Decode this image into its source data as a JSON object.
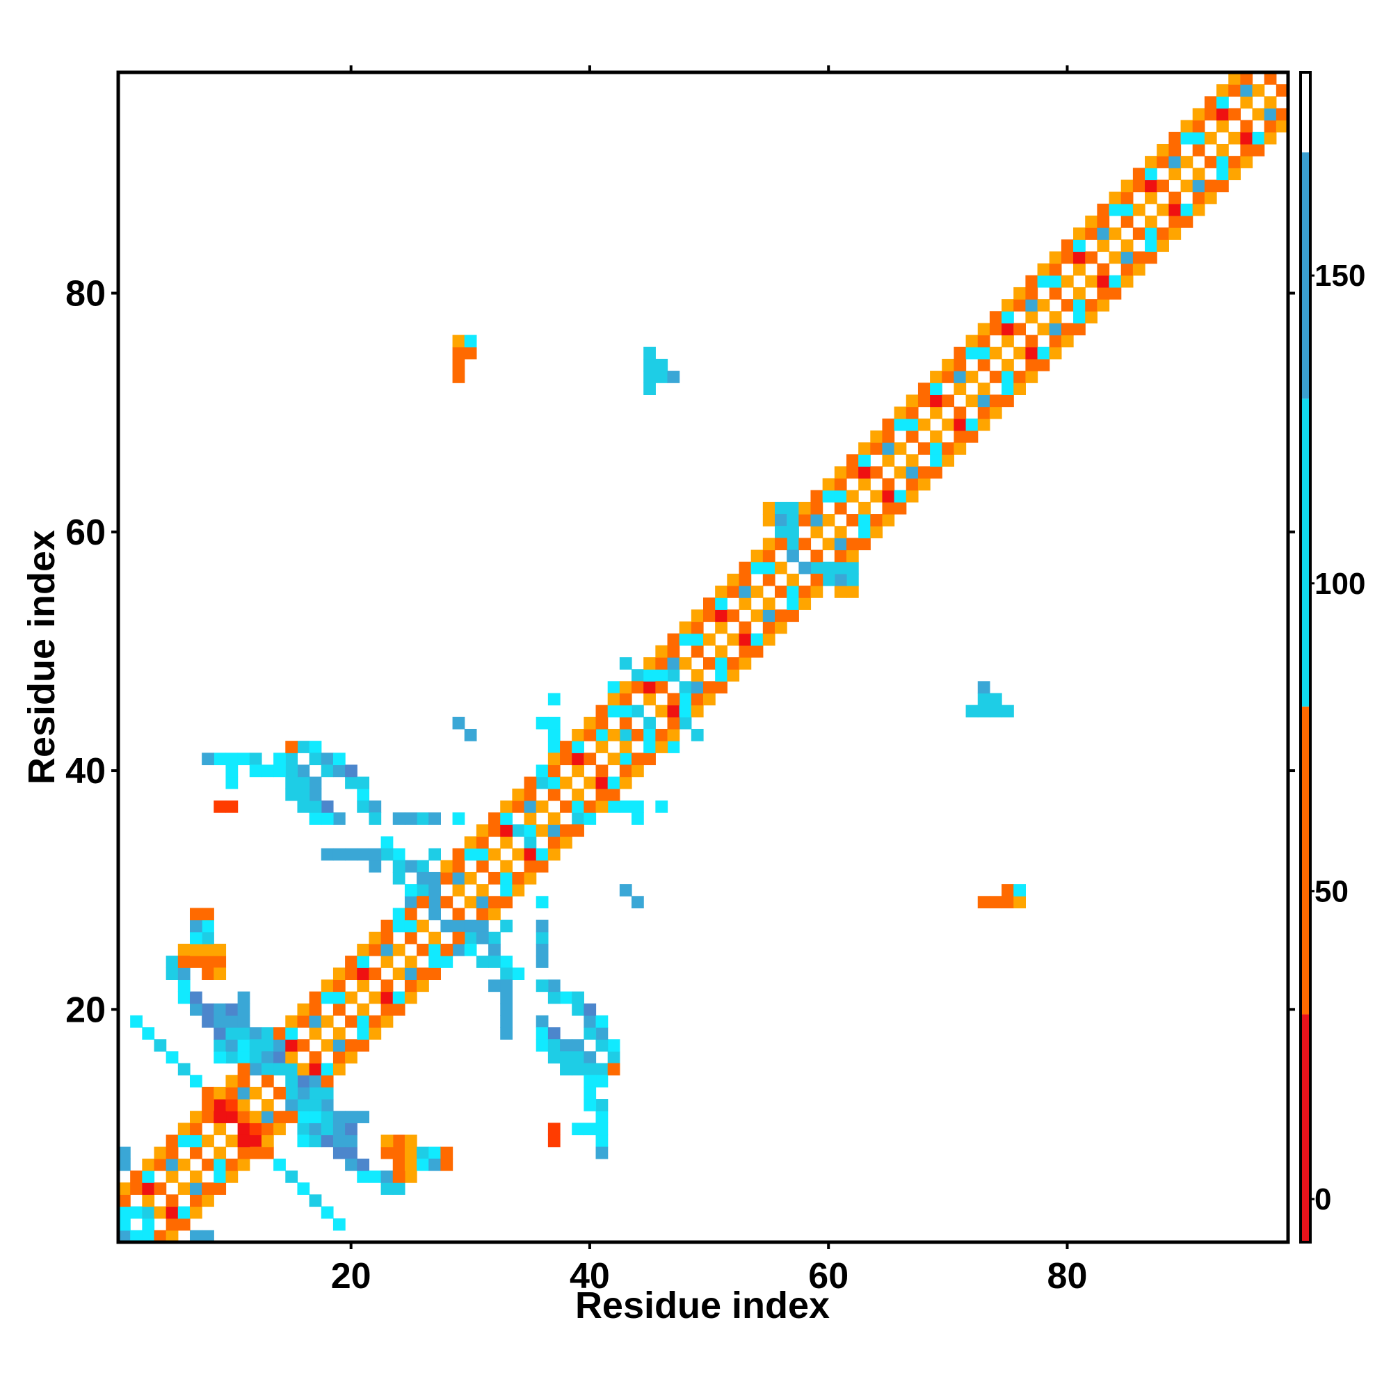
{
  "chart_data": {
    "type": "heatmap",
    "title": "",
    "xlabel": "Residue index",
    "ylabel": "Residue index",
    "xlim": [
      0.5,
      98.5
    ],
    "ylim": [
      0.5,
      98.5
    ],
    "x_ticks": [
      20,
      40,
      60,
      80
    ],
    "y_ticks": [
      20,
      40,
      60,
      80
    ],
    "x_tick_labels": [
      "20",
      "40",
      "60",
      "80"
    ],
    "y_tick_labels": [
      "20",
      "40",
      "60",
      "80"
    ],
    "grid": false,
    "legend": "colorbar-right",
    "colorbar": {
      "range": [
        -7,
        183
      ],
      "ticks": [
        0,
        50,
        100,
        150
      ],
      "tick_labels": [
        "0",
        "50",
        "100",
        "150"
      ],
      "bands": [
        {
          "from": -7,
          "to": 30,
          "color": "#e8131b"
        },
        {
          "from": 30,
          "to": 80,
          "color": "#ff6a00"
        },
        {
          "from": 80,
          "to": 130,
          "color": "#11dcf0"
        },
        {
          "from": 130,
          "to": 170,
          "color": "#3a9fd0"
        },
        {
          "from": 170,
          "to": 183,
          "color": "#ffffff"
        }
      ]
    },
    "palette": {
      "R": "#ef1111",
      "r": "#ff3c00",
      "o": "#ff6a00",
      "a": "#ffa500",
      "c": "#11eaff",
      "t": "#1ecde6",
      "b": "#3aa7d6",
      "d": "#4c86cc"
    },
    "diagonal_band": {
      "from": 1,
      "to": 98,
      "width": 4,
      "pattern": "oRaocacbo"
    },
    "cells": [
      [
        8,
        13,
        "o"
      ],
      [
        9,
        12,
        "R"
      ],
      [
        10,
        11,
        "R"
      ],
      [
        10,
        12,
        "r"
      ],
      [
        11,
        10,
        "R"
      ],
      [
        11,
        11,
        "o"
      ],
      [
        12,
        9,
        "R"
      ],
      [
        12,
        10,
        "o"
      ],
      [
        13,
        8,
        "R"
      ],
      [
        13,
        9,
        "a"
      ],
      [
        7,
        14,
        "c"
      ],
      [
        6,
        15,
        "t"
      ],
      [
        5,
        16,
        "c"
      ],
      [
        4,
        17,
        "t"
      ],
      [
        3,
        18,
        "c"
      ],
      [
        2,
        19,
        "c"
      ],
      [
        14,
        7,
        "t"
      ],
      [
        15,
        6,
        "t"
      ],
      [
        16,
        5,
        "b"
      ],
      [
        17,
        4,
        "b"
      ],
      [
        18,
        3,
        "b"
      ],
      [
        19,
        2,
        "t"
      ],
      [
        16,
        10,
        "t"
      ],
      [
        16,
        9,
        "c"
      ],
      [
        17,
        9,
        "t"
      ],
      [
        17,
        10,
        "b"
      ],
      [
        18,
        9,
        "d"
      ],
      [
        18,
        10,
        "t"
      ],
      [
        19,
        8,
        "d"
      ],
      [
        19,
        9,
        "b"
      ],
      [
        20,
        8,
        "d"
      ],
      [
        20,
        7,
        "b"
      ],
      [
        21,
        6,
        "c"
      ],
      [
        21,
        7,
        "d"
      ],
      [
        22,
        6,
        "c"
      ],
      [
        23,
        5,
        "t"
      ],
      [
        23,
        6,
        "b"
      ],
      [
        24,
        5,
        "t"
      ],
      [
        11,
        17,
        "c"
      ],
      [
        11,
        16,
        "c"
      ],
      [
        12,
        16,
        "t"
      ],
      [
        12,
        15,
        "b"
      ],
      [
        13,
        17,
        "t"
      ],
      [
        13,
        16,
        "b"
      ],
      [
        13,
        15,
        "t"
      ],
      [
        14,
        16,
        "d"
      ],
      [
        14,
        15,
        "t"
      ],
      [
        15,
        15,
        "t"
      ],
      [
        15,
        14,
        "b"
      ],
      [
        16,
        14,
        "t"
      ],
      [
        9,
        20,
        "b"
      ],
      [
        9,
        19,
        "d"
      ],
      [
        10,
        19,
        "b"
      ],
      [
        10,
        18,
        "d"
      ],
      [
        11,
        18,
        "t"
      ],
      [
        12,
        18,
        "b"
      ],
      [
        13,
        18,
        "t"
      ],
      [
        14,
        17,
        "b"
      ],
      [
        17,
        12,
        "t"
      ],
      [
        17,
        13,
        "c"
      ],
      [
        18,
        12,
        "b"
      ],
      [
        19,
        11,
        "b"
      ],
      [
        20,
        10,
        "d"
      ],
      [
        20,
        11,
        "b"
      ],
      [
        21,
        11,
        "b"
      ],
      [
        6,
        25,
        "a"
      ],
      [
        6,
        24,
        "o"
      ],
      [
        7,
        24,
        "o"
      ],
      [
        7,
        25,
        "a"
      ],
      [
        8,
        24,
        "o"
      ],
      [
        8,
        25,
        "a"
      ],
      [
        9,
        24,
        "o"
      ],
      [
        9,
        25,
        "a"
      ],
      [
        8,
        26,
        "t"
      ],
      [
        8,
        27,
        "c"
      ],
      [
        8,
        28,
        "o"
      ],
      [
        23,
        8,
        "o"
      ],
      [
        23,
        9,
        "a"
      ],
      [
        24,
        8,
        "a"
      ],
      [
        24,
        7,
        "o"
      ],
      [
        24,
        6,
        "a"
      ],
      [
        25,
        8,
        "t"
      ],
      [
        26,
        7,
        "c"
      ],
      [
        27,
        7,
        "b"
      ],
      [
        28,
        7,
        "o"
      ],
      [
        16,
        42,
        "t"
      ],
      [
        17,
        42,
        "c"
      ],
      [
        17,
        41,
        "t"
      ],
      [
        18,
        41,
        "b"
      ],
      [
        18,
        40,
        "t"
      ],
      [
        19,
        40,
        "b"
      ],
      [
        20,
        39,
        "t"
      ],
      [
        21,
        38,
        "c"
      ],
      [
        21,
        37,
        "t"
      ],
      [
        22,
        37,
        "b"
      ],
      [
        22,
        36,
        "t"
      ],
      [
        19,
        41,
        "c"
      ],
      [
        20,
        40,
        "d"
      ],
      [
        21,
        39,
        "t"
      ],
      [
        9,
        41,
        "c"
      ],
      [
        10,
        41,
        "c"
      ],
      [
        11,
        41,
        "c"
      ],
      [
        12,
        41,
        "t"
      ],
      [
        12,
        40,
        "c"
      ],
      [
        10,
        37,
        "r"
      ],
      [
        18,
        33,
        "b"
      ],
      [
        19,
        33,
        "b"
      ],
      [
        20,
        33,
        "b"
      ],
      [
        21,
        33,
        "b"
      ],
      [
        22,
        32,
        "b"
      ],
      [
        26,
        36,
        "t"
      ],
      [
        27,
        36,
        "b"
      ],
      [
        27,
        33,
        "t"
      ],
      [
        26,
        32,
        "t"
      ],
      [
        27,
        31,
        "b"
      ],
      [
        26,
        30,
        "t"
      ],
      [
        25,
        29,
        "b"
      ],
      [
        24,
        28,
        "c"
      ],
      [
        28,
        27,
        "b"
      ],
      [
        29,
        27,
        "b"
      ],
      [
        30,
        27,
        "b"
      ],
      [
        31,
        26,
        "b"
      ],
      [
        32,
        25,
        "b"
      ],
      [
        33,
        24,
        "c"
      ],
      [
        34,
        23,
        "c"
      ],
      [
        30,
        25,
        "c"
      ],
      [
        31,
        24,
        "t"
      ],
      [
        32,
        24,
        "t"
      ],
      [
        33,
        23,
        "t"
      ],
      [
        33,
        22,
        "b"
      ],
      [
        33,
        21,
        "b"
      ],
      [
        33,
        20,
        "b"
      ],
      [
        33,
        19,
        "b"
      ],
      [
        32,
        22,
        "c"
      ],
      [
        36,
        19,
        "b"
      ],
      [
        36,
        18,
        "c"
      ],
      [
        36,
        17,
        "c"
      ],
      [
        37,
        18,
        "d"
      ],
      [
        37,
        17,
        "t"
      ],
      [
        37,
        16,
        "t"
      ],
      [
        38,
        17,
        "b"
      ],
      [
        38,
        16,
        "t"
      ],
      [
        38,
        15,
        "t"
      ],
      [
        39,
        17,
        "b"
      ],
      [
        39,
        16,
        "t"
      ],
      [
        39,
        15,
        "t"
      ],
      [
        40,
        16,
        "b"
      ],
      [
        40,
        15,
        "t"
      ],
      [
        41,
        15,
        "t"
      ],
      [
        41,
        14,
        "c"
      ],
      [
        40,
        14,
        "c"
      ],
      [
        42,
        15,
        "o"
      ],
      [
        40,
        13,
        "c"
      ],
      [
        39,
        10,
        "c"
      ],
      [
        40,
        10,
        "c"
      ],
      [
        41,
        10,
        "c"
      ],
      [
        41,
        9,
        "t"
      ],
      [
        41,
        8,
        "b"
      ],
      [
        37,
        9,
        "r"
      ],
      [
        36,
        26,
        "b"
      ],
      [
        36,
        25,
        "b"
      ],
      [
        44,
        29,
        "b"
      ],
      [
        36,
        29,
        "c"
      ],
      [
        29,
        74,
        "o"
      ],
      [
        29,
        75,
        "o"
      ],
      [
        29,
        76,
        "a"
      ],
      [
        30,
        75,
        "o"
      ],
      [
        30,
        76,
        "c"
      ],
      [
        45,
        72,
        "t"
      ],
      [
        45,
        73,
        "t"
      ],
      [
        45,
        74,
        "t"
      ],
      [
        46,
        74,
        "t"
      ],
      [
        46,
        73,
        "t"
      ],
      [
        47,
        73,
        "b"
      ],
      [
        73,
        45,
        "t"
      ],
      [
        74,
        45,
        "t"
      ],
      [
        75,
        45,
        "t"
      ],
      [
        73,
        46,
        "b"
      ],
      [
        72,
        45,
        "t"
      ],
      [
        73,
        29,
        "o"
      ],
      [
        74,
        29,
        "o"
      ],
      [
        75,
        29,
        "o"
      ],
      [
        75,
        30,
        "a"
      ],
      [
        76,
        29,
        "a"
      ],
      [
        76,
        30,
        "c"
      ],
      [
        55,
        61,
        "a"
      ],
      [
        55,
        62,
        "a"
      ],
      [
        56,
        62,
        "t"
      ],
      [
        56,
        61,
        "b"
      ],
      [
        56,
        60,
        "t"
      ],
      [
        57,
        60,
        "t"
      ],
      [
        57,
        59,
        "t"
      ],
      [
        58,
        57,
        "b"
      ],
      [
        59,
        57,
        "t"
      ],
      [
        60,
        56,
        "t"
      ],
      [
        61,
        56,
        "a"
      ],
      [
        62,
        56,
        "a"
      ],
      [
        62,
        57,
        "t"
      ],
      [
        61,
        57,
        "t"
      ],
      [
        41,
        43,
        "c"
      ],
      [
        43,
        43,
        "t"
      ],
      [
        44,
        43,
        "o"
      ],
      [
        45,
        44,
        "t"
      ],
      [
        42,
        37,
        "c"
      ],
      [
        43,
        37,
        "c"
      ],
      [
        44,
        36,
        "c"
      ],
      [
        46,
        37,
        "c"
      ],
      [
        47,
        42,
        "c"
      ],
      [
        48,
        47,
        "t"
      ],
      [
        30,
        43,
        "b"
      ],
      [
        29,
        44,
        "b"
      ],
      [
        37,
        44,
        "c"
      ],
      [
        43,
        49,
        "t"
      ],
      [
        44,
        48,
        "t"
      ],
      [
        46,
        48,
        "c"
      ],
      [
        24,
        36,
        "b"
      ],
      [
        25,
        36,
        "t"
      ],
      [
        29,
        36,
        "t"
      ],
      [
        34,
        35,
        "t"
      ],
      [
        35,
        35,
        "c"
      ],
      [
        39,
        36,
        "t"
      ],
      [
        40,
        36,
        "c"
      ],
      [
        1,
        1,
        "b"
      ],
      [
        2,
        1,
        "c"
      ],
      [
        3,
        1,
        "c"
      ],
      [
        8,
        1,
        "b"
      ],
      [
        1,
        3,
        "c"
      ],
      [
        1,
        2,
        "c"
      ],
      [
        2,
        3,
        "c"
      ],
      [
        3,
        3,
        "t"
      ],
      [
        1,
        7,
        "b"
      ]
    ]
  }
}
